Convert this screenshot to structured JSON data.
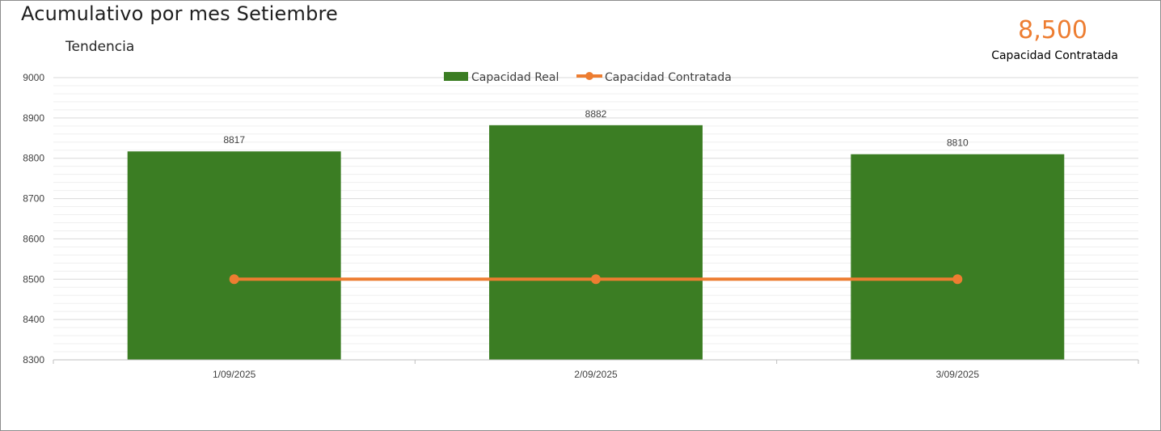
{
  "header": {
    "title": "Acumulativo por mes Setiembre",
    "subtitle": "Tendencia"
  },
  "kpi": {
    "value": "8,500",
    "label": "Capacidad Contratada"
  },
  "colors": {
    "bar": "#3B7D23",
    "line": "#ED7D31",
    "grid_major": "#d9d9d9",
    "grid_minor": "#efefef"
  },
  "chart_data": {
    "type": "bar",
    "categories": [
      "1/09/2025",
      "2/09/2025",
      "3/09/2025"
    ],
    "series": [
      {
        "name": "Capacidad Real",
        "type": "bar",
        "values": [
          8817,
          8882,
          8810
        ],
        "data_labels": [
          "8817",
          "8882",
          "8810"
        ]
      },
      {
        "name": "Capacidad Contratada",
        "type": "line",
        "values": [
          8500,
          8500,
          8500
        ]
      }
    ],
    "ylim": [
      8300,
      9000
    ],
    "yticks": [
      8300,
      8400,
      8500,
      8600,
      8700,
      8800,
      8900,
      9000
    ],
    "ytick_labels": [
      "8300",
      "8400",
      "8500",
      "8600",
      "8700",
      "8800",
      "8900",
      "9000"
    ],
    "minor_step": 20,
    "grid": true,
    "legend_position": "top"
  }
}
